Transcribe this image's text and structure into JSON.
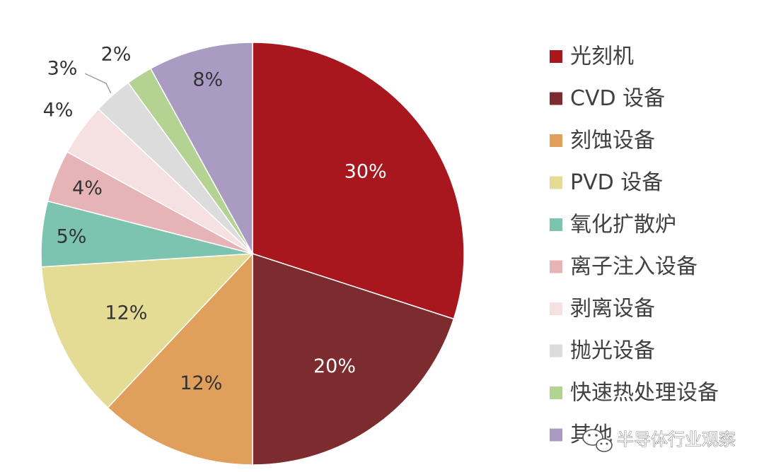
{
  "chart_data": {
    "type": "pie",
    "start_angle_deg": 0,
    "direction": "clockwise",
    "legend_position": "right",
    "slices": [
      {
        "label": "光刻机",
        "value": 30,
        "display": "30%",
        "color": "#a8171d",
        "label_color": "#ffffff"
      },
      {
        "label": "CVD 设备",
        "value": 20,
        "display": "20%",
        "color": "#7c2b2e",
        "label_color": "#ffffff"
      },
      {
        "label": "刻蚀设备",
        "value": 12,
        "display": "12%",
        "color": "#e0a05c",
        "label_color": "#333333"
      },
      {
        "label": "PVD 设备",
        "value": 12,
        "display": "12%",
        "color": "#e4dc94",
        "label_color": "#333333"
      },
      {
        "label": "氧化扩散炉",
        "value": 5,
        "display": "5%",
        "color": "#7cc4b0",
        "label_color": "#333333"
      },
      {
        "label": "离子注入设备",
        "value": 4,
        "display": "4%",
        "color": "#e6b4b6",
        "label_color": "#333333"
      },
      {
        "label": "剥离设备",
        "value": 4,
        "display": "4%",
        "color": "#f5e1e2",
        "label_color": "#333333"
      },
      {
        "label": "抛光设备",
        "value": 3,
        "display": "3%",
        "color": "#dcdcdc",
        "label_color": "#333333"
      },
      {
        "label": "快速热处理设备",
        "value": 2,
        "display": "2%",
        "color": "#b4d291",
        "label_color": "#333333"
      },
      {
        "label": "其他",
        "value": 8,
        "display": "8%",
        "color": "#aa9bc3",
        "label_color": "#333333"
      }
    ]
  },
  "watermark": {
    "text": "半导体行业观察",
    "icon": "wechat-icon"
  }
}
